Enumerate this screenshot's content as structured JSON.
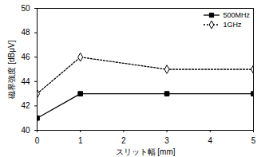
{
  "chart_data": {
    "type": "line",
    "x_label": "スリット幅 [mm]",
    "y_label": "磁界強度 [dBμV]",
    "x": [
      0,
      1,
      3,
      5
    ],
    "series": [
      {
        "name": "500MHz",
        "color": "#000000",
        "values": [
          41,
          43,
          43,
          43
        ],
        "marker": "square",
        "line_style": "solid"
      },
      {
        "name": "1GHz",
        "color": "#000000",
        "values": [
          43,
          46,
          45,
          45
        ],
        "marker": "diamond",
        "line_style": "dotted"
      }
    ],
    "xlim": [
      0,
      5
    ],
    "xticks": [
      0,
      1,
      2,
      3,
      4,
      5
    ],
    "ylim": [
      40,
      50
    ],
    "yticks": [
      40,
      42,
      44,
      46,
      48,
      50
    ],
    "grid": false,
    "legend": "top-right"
  }
}
